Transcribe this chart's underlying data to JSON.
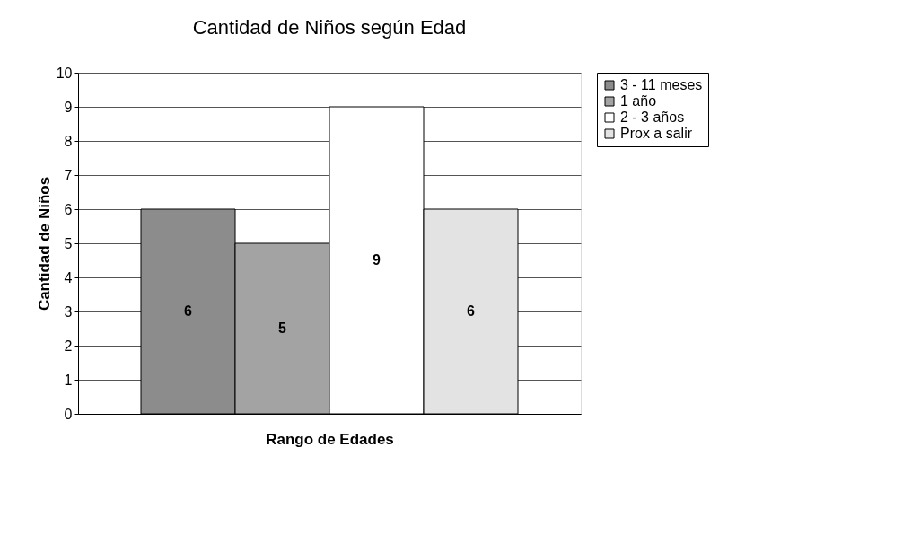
{
  "chart_data": {
    "type": "bar",
    "title": "Cantidad  de Niños según Edad",
    "xlabel": "Rango de Edades",
    "ylabel": "Cantidad de Niños",
    "categories": [
      null
    ],
    "series": [
      {
        "name": "3 - 11 meses",
        "color": "#8c8c8c",
        "values": [
          6
        ]
      },
      {
        "name": "1 año",
        "color": "#a3a3a3",
        "values": [
          5
        ]
      },
      {
        "name": "2 - 3 años",
        "color": "#ffffff",
        "values": [
          9
        ]
      },
      {
        "name": "Prox a salir",
        "color": "#e3e3e3",
        "values": [
          6
        ]
      }
    ],
    "ylim": [
      0,
      10
    ],
    "yticks": [
      0,
      1,
      2,
      3,
      4,
      5,
      6,
      7,
      8,
      9,
      10
    ],
    "grid": "y",
    "legend": "right",
    "data_labels": true,
    "tick_labels": "y"
  }
}
